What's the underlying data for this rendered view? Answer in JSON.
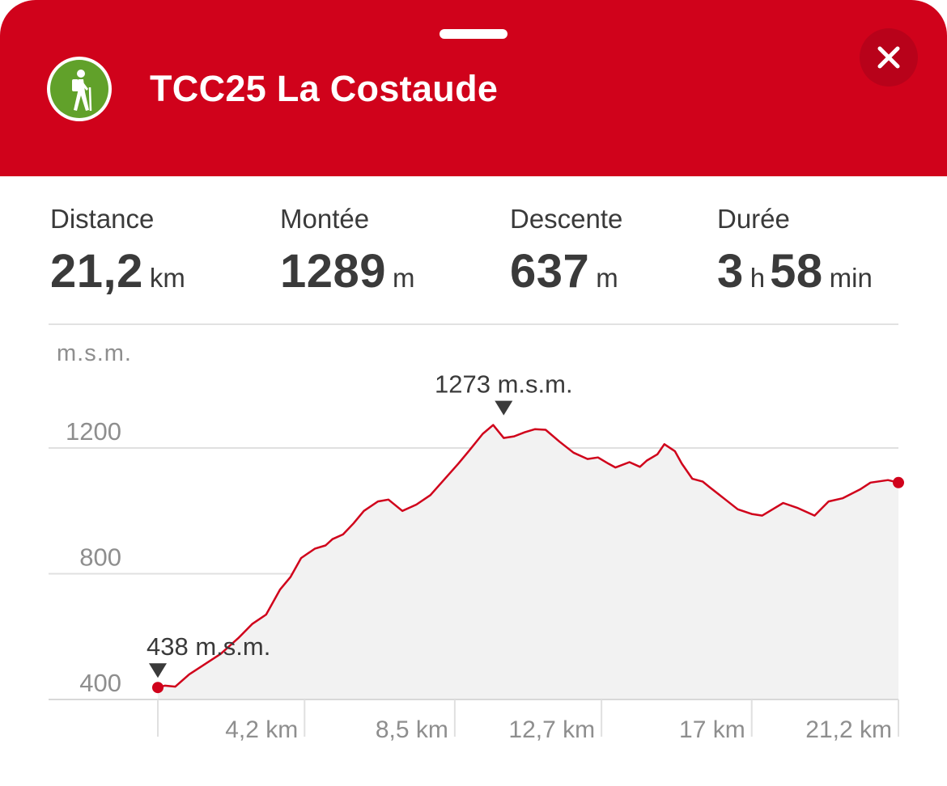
{
  "header": {
    "title": "TCC25 La Costaude",
    "badge_icon": "hiker-icon",
    "close_icon": "close-icon",
    "accent_color": "#d0021b",
    "badge_color": "#61a12a"
  },
  "stats": {
    "distance": {
      "label": "Distance",
      "value": "21,2",
      "unit": "km"
    },
    "ascent": {
      "label": "Montée",
      "value": "1289",
      "unit": "m"
    },
    "descent": {
      "label": "Descente",
      "value": "637",
      "unit": "m"
    },
    "duration": {
      "label": "Durée",
      "hours": "3",
      "hours_unit": "h",
      "minutes": "58",
      "minutes_unit": "min"
    }
  },
  "chart_data": {
    "type": "area",
    "ylabel": "m.s.m.",
    "xlabel": "",
    "y_ticks": [
      400,
      800,
      1200
    ],
    "y_tick_labels": [
      "400",
      "800",
      "1200"
    ],
    "x_ticks": [
      4.2,
      8.5,
      12.7,
      17,
      21.2
    ],
    "x_tick_labels": [
      "4,2 km",
      "8,5 km",
      "12,7 km",
      "17 km",
      "21,2 km"
    ],
    "xlim": [
      0,
      21.2
    ],
    "ylim": [
      400,
      1400
    ],
    "grid": true,
    "line_color": "#d0021b",
    "fill_color": "#f2f2f2",
    "annotations": [
      {
        "label": "1273 m.s.m.",
        "x": 9.9,
        "y": 1273
      },
      {
        "label": "438 m.s.m.",
        "x": 0,
        "y": 438
      }
    ],
    "series": [
      {
        "x": [
          0,
          0.2,
          0.5,
          0.9,
          1.8,
          2.3,
          2.7,
          3.1,
          3.5,
          3.8,
          4.1,
          4.5,
          4.8,
          5.0,
          5.3,
          5.6,
          5.9,
          6.3,
          6.6,
          7.0,
          7.4,
          7.8,
          8.2,
          8.6,
          8.9,
          9.3,
          9.6,
          9.9,
          10.2,
          10.5,
          10.8,
          11.1,
          11.5,
          11.9,
          12.3,
          12.6,
          12.9,
          13.1,
          13.5,
          13.8,
          14.0,
          14.3,
          14.5,
          14.8,
          15.0,
          15.3,
          15.6,
          15.8,
          16.2,
          16.6,
          17.0,
          17.3,
          17.6,
          17.9,
          18.3,
          18.8,
          19.2,
          19.6,
          20.1,
          20.4,
          20.9,
          21.2
        ],
        "y": [
          438,
          444,
          441,
          480,
          545,
          595,
          640,
          670,
          750,
          790,
          850,
          880,
          890,
          910,
          925,
          960,
          1000,
          1030,
          1036,
          1000,
          1020,
          1050,
          1100,
          1150,
          1190,
          1245,
          1273,
          1232,
          1237,
          1250,
          1260,
          1258,
          1220,
          1185,
          1165,
          1170,
          1150,
          1138,
          1155,
          1140,
          1160,
          1180,
          1212,
          1190,
          1150,
          1102,
          1093,
          1075,
          1040,
          1005,
          990,
          985,
          1005,
          1025,
          1010,
          985,
          1030,
          1040,
          1068,
          1090,
          1098,
          1090
        ]
      }
    ]
  }
}
